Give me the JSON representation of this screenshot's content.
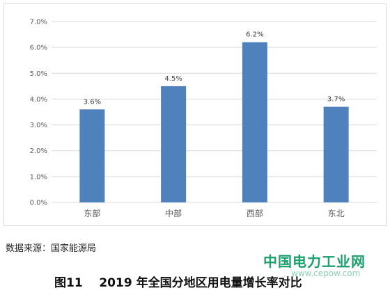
{
  "chart_data": {
    "type": "bar",
    "categories": [
      "东部",
      "中部",
      "西部",
      "东北"
    ],
    "values": [
      3.6,
      4.5,
      6.2,
      3.7
    ],
    "data_labels": [
      "3.6%",
      "4.5%",
      "6.2%",
      "3.7%"
    ],
    "ylim": [
      0,
      7
    ],
    "yticks": [
      "0.0%",
      "1.0%",
      "2.0%",
      "3.0%",
      "4.0%",
      "5.0%",
      "6.0%",
      "7.0%"
    ],
    "grid": true,
    "bar_color": "#4f81bd",
    "grid_color": "#d9d9d9"
  },
  "source_note": "数据来源：国家能源局",
  "caption": "图11    2019 年全国分地区用电量增长率对比",
  "watermark": {
    "text": "中国电力工业网",
    "url": "www.cepow.com"
  }
}
